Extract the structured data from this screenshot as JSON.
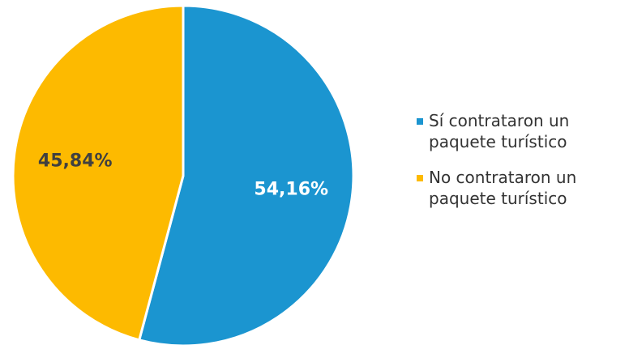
{
  "chart_data": {
    "type": "pie",
    "slices": [
      {
        "label": "Sí contrataron un paquete turístico",
        "value": 54.16,
        "display": "54,16%",
        "color": "#1B95D0",
        "label_color": "#FFFFFF"
      },
      {
        "label": "No contrataron un paquete turístico",
        "value": 45.84,
        "display": "45,84%",
        "color": "#FDBA00",
        "label_color": "#404040"
      }
    ],
    "legend": {
      "position": "right",
      "items": [
        {
          "line1": "Sí contrataron un",
          "line2": "paquete turístico",
          "color": "#1B95D0"
        },
        {
          "line1": "No contrataron un",
          "line2": "paquete turístico",
          "color": "#FDBA00"
        }
      ]
    },
    "start_angle": "top",
    "direction": "clockwise"
  }
}
